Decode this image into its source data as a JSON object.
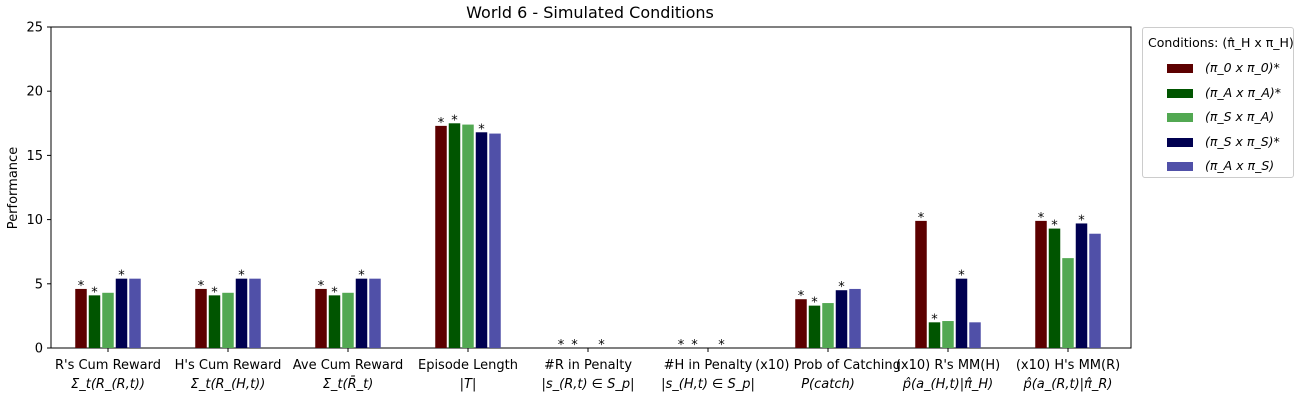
{
  "chart_data": {
    "type": "bar",
    "title": "World 6 - Simulated Conditions",
    "ylabel": "Performance",
    "ylim": [
      0,
      25
    ],
    "yticks": [
      0,
      5,
      10,
      15,
      20,
      25
    ],
    "categories": [
      {
        "line1": "R's Cum Reward",
        "line2": "Σ_t(R_(R,t))"
      },
      {
        "line1": "H's Cum Reward",
        "line2": "Σ_t(R_(H,t))"
      },
      {
        "line1": "Ave Cum Reward",
        "line2": "Σ_t(R̄_t)"
      },
      {
        "line1": "Episode Length",
        "line2": "|T|"
      },
      {
        "line1": "#R in Penalty",
        "line2": "|s_(R,t) ∈ S_p|"
      },
      {
        "line1": "#H in Penalty",
        "line2": "|s_(H,t) ∈ S_p|"
      },
      {
        "line1": "(x10) Prob of Catching",
        "line2": "P(catch)"
      },
      {
        "line1": "(x10) R's MM(H)",
        "line2": "p̂(a_(H,t)|π̂_H)"
      },
      {
        "line1": "(x10) H's MM(R)",
        "line2": "p̂(a_(R,t)|π̂_R)"
      }
    ],
    "legend_title": "Conditions: (π̂_H x π_H)",
    "legend_placement": "outside-right-top",
    "series": [
      {
        "name": "(π_0 x π_0)*",
        "color": "#5c0000",
        "values": [
          4.6,
          4.6,
          4.6,
          17.3,
          0,
          0,
          3.8,
          9.9,
          9.9
        ],
        "stars": [
          true,
          true,
          true,
          true,
          true,
          true,
          true,
          true,
          true
        ]
      },
      {
        "name": "(π_A x π_A)*",
        "color": "#005500",
        "values": [
          4.1,
          4.1,
          4.1,
          17.5,
          0,
          0,
          3.3,
          2.0,
          9.3
        ],
        "stars": [
          true,
          true,
          true,
          true,
          true,
          true,
          true,
          true,
          true
        ]
      },
      {
        "name": "(π_S x π_A)",
        "color": "#52a852",
        "values": [
          4.3,
          4.3,
          4.3,
          17.4,
          0,
          0,
          3.5,
          2.1,
          7.0
        ],
        "stars": [
          false,
          false,
          false,
          false,
          false,
          false,
          false,
          false,
          false
        ]
      },
      {
        "name": "(π_S x π_S)*",
        "color": "#000050",
        "values": [
          5.4,
          5.4,
          5.4,
          16.8,
          0,
          0,
          4.5,
          5.4,
          9.7
        ],
        "stars": [
          true,
          true,
          true,
          true,
          true,
          true,
          true,
          true,
          true
        ]
      },
      {
        "name": "(π_A x π_S)",
        "color": "#5050a8",
        "values": [
          5.4,
          5.4,
          5.4,
          16.7,
          0,
          0,
          4.6,
          2.0,
          8.9
        ],
        "stars": [
          false,
          false,
          false,
          false,
          false,
          false,
          false,
          false,
          false
        ]
      }
    ],
    "star_symbol": "*",
    "grid": false
  }
}
